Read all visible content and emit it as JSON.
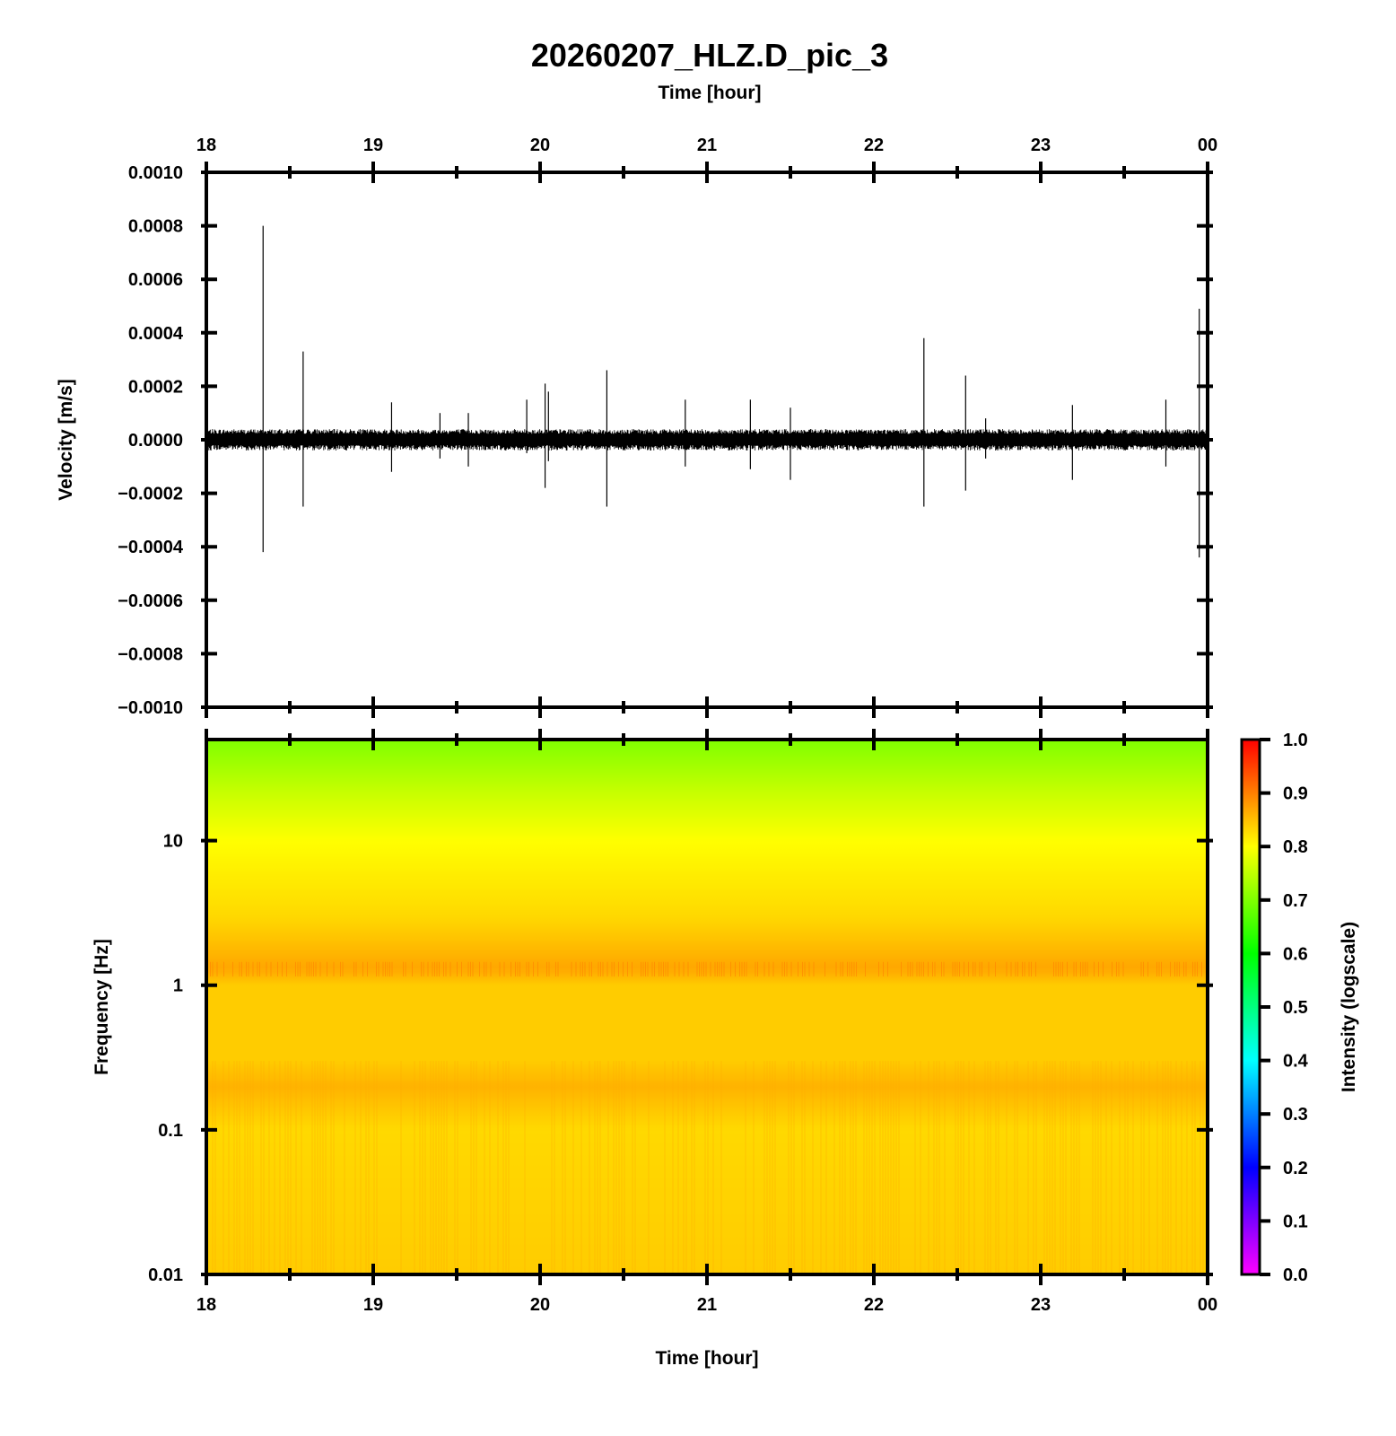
{
  "chart_data": [
    {
      "type": "line",
      "title": "20260207_HLZ.D_pic_3",
      "xlabel": "Time [hour]",
      "ylabel": "Velocity [m/s]",
      "x_range_hours": [
        18,
        24
      ],
      "x_tick_labels": [
        "18",
        "19",
        "20",
        "21",
        "22",
        "23",
        "00"
      ],
      "ylim": [
        -0.001,
        0.001
      ],
      "y_tick_labels": [
        "0.0010",
        "0.0008",
        "0.0006",
        "0.0004",
        "0.0002",
        "0.0000",
        "−0.0002",
        "−0.0004",
        "−0.0006",
        "−0.0008",
        "−0.0010"
      ],
      "y_tick_values": [
        0.001,
        0.0008,
        0.0006,
        0.0004,
        0.0002,
        0,
        -0.0002,
        -0.0004,
        -0.0006,
        -0.0008,
        -0.001
      ],
      "background_noise_amplitude": 4e-05,
      "spikes": [
        {
          "t": 18.34,
          "max": 0.0008,
          "min": -0.00042
        },
        {
          "t": 18.58,
          "max": 0.00033,
          "min": -0.00025
        },
        {
          "t": 19.11,
          "max": 0.00014,
          "min": -0.00012
        },
        {
          "t": 19.4,
          "max": 0.0001,
          "min": -7e-05
        },
        {
          "t": 19.57,
          "max": 0.0001,
          "min": -0.0001
        },
        {
          "t": 19.92,
          "max": 0.00015,
          "min": -5e-05
        },
        {
          "t": 20.03,
          "max": 0.00021,
          "min": -0.00018
        },
        {
          "t": 20.05,
          "max": 0.00018,
          "min": -8e-05
        },
        {
          "t": 20.4,
          "max": 0.00026,
          "min": -0.00025
        },
        {
          "t": 20.87,
          "max": 0.00015,
          "min": -0.0001
        },
        {
          "t": 21.26,
          "max": 0.00015,
          "min": -0.00011
        },
        {
          "t": 21.5,
          "max": 0.00012,
          "min": -0.00015
        },
        {
          "t": 22.3,
          "max": 0.00038,
          "min": -0.00025
        },
        {
          "t": 22.55,
          "max": 0.00024,
          "min": -0.00019
        },
        {
          "t": 22.67,
          "max": 8e-05,
          "min": -7e-05
        },
        {
          "t": 23.19,
          "max": 0.00013,
          "min": -0.00015
        },
        {
          "t": 23.75,
          "max": 0.00015,
          "min": -0.0001
        },
        {
          "t": 23.95,
          "max": 0.00049,
          "min": -0.00044
        }
      ]
    },
    {
      "type": "heatmap",
      "xlabel": "Time [hour]",
      "ylabel": "Frequency [Hz]",
      "x_range_hours": [
        18,
        24
      ],
      "x_tick_labels": [
        "18",
        "19",
        "20",
        "21",
        "22",
        "23",
        "00"
      ],
      "y_scale": "log",
      "ylim": [
        0.01,
        50
      ],
      "y_tick_labels": [
        "10",
        "1",
        "0.1",
        "0.01"
      ],
      "y_tick_values": [
        10,
        1,
        0.1,
        0.01
      ],
      "colorbar": {
        "label": "Intensity (logscale)",
        "range": [
          0,
          1
        ],
        "tick_labels": [
          "1.0",
          "0.9",
          "0.8",
          "0.7",
          "0.6",
          "0.5",
          "0.4",
          "0.3",
          "0.2",
          "0.1",
          "0.0"
        ],
        "tick_values": [
          1,
          0.9,
          0.8,
          0.7,
          0.6,
          0.5,
          0.4,
          0.3,
          0.2,
          0.1,
          0
        ],
        "colors": [
          "#ff00ff",
          "#0000ff",
          "#00ffff",
          "#00ff00",
          "#ffff00",
          "#ff0000"
        ]
      },
      "intensity_profile": [
        {
          "freq": 50,
          "intensity": 0.7
        },
        {
          "freq": 20,
          "intensity": 0.76
        },
        {
          "freq": 10,
          "intensity": 0.8
        },
        {
          "freq": 3,
          "intensity": 0.83
        },
        {
          "freq": 1.3,
          "intensity": 0.87
        },
        {
          "freq": 1,
          "intensity": 0.84
        },
        {
          "freq": 0.3,
          "intensity": 0.84
        },
        {
          "freq": 0.2,
          "intensity": 0.86
        },
        {
          "freq": 0.1,
          "intensity": 0.83
        },
        {
          "freq": 0.01,
          "intensity": 0.84
        }
      ]
    }
  ]
}
